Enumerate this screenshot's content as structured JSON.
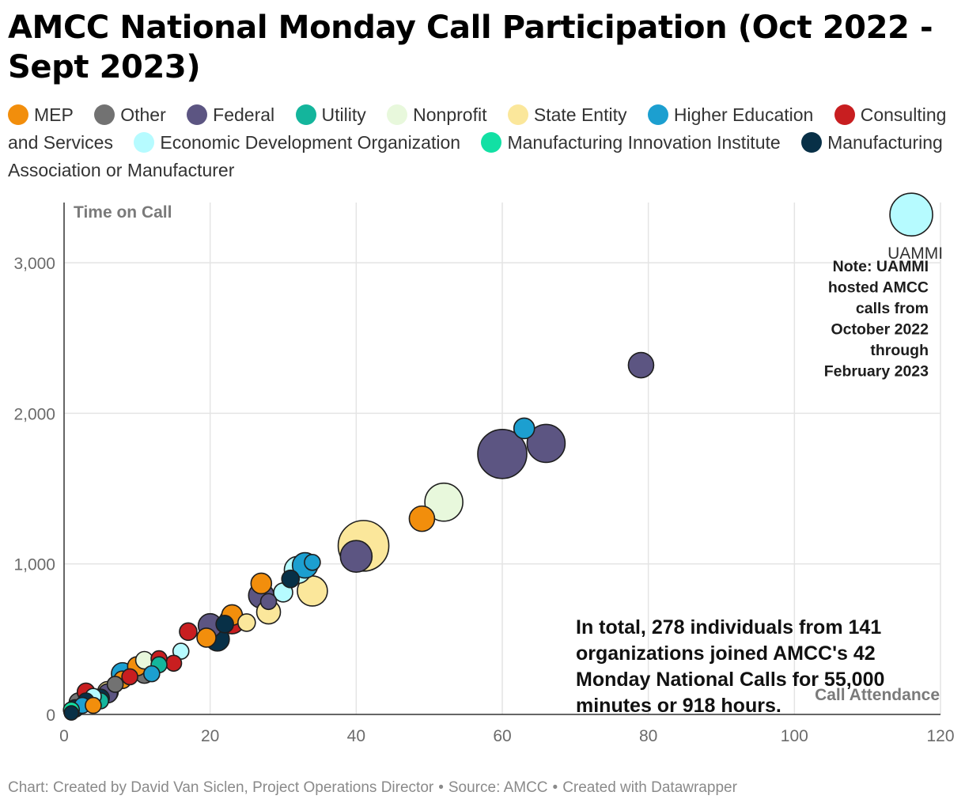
{
  "title": "AMCC National Monday Call Participation (Oct 2022 - Sept 2023)",
  "legend": [
    {
      "label": "MEP",
      "color": "#f28e0c"
    },
    {
      "label": "Other",
      "color": "#727272"
    },
    {
      "label": "Federal",
      "color": "#5c5582"
    },
    {
      "label": "Utility",
      "color": "#14b59c"
    },
    {
      "label": "Nonprofit",
      "color": "#e8f8dc"
    },
    {
      "label": "State Entity",
      "color": "#fbe79b"
    },
    {
      "label": "Higher Education",
      "color": "#1c9fd0"
    },
    {
      "label": "Consulting and Services",
      "color": "#c81e20"
    },
    {
      "label": "Economic Development Organization",
      "color": "#b6fbff"
    },
    {
      "label": "Manufacturing Innovation Institute",
      "color": "#12e0a4"
    },
    {
      "label": "Manufacturing Association or Manufacturer",
      "color": "#083047"
    }
  ],
  "footer": {
    "credit": "Chart: Created by David Van Siclen, Project Operations Director",
    "separator": "•",
    "source": "Source: AMCC",
    "tool": "Created with Datawrapper"
  },
  "chart_data": {
    "type": "scatter",
    "xlabel": "Call Attendance",
    "ylabel": "Time on Call",
    "xlim": [
      0,
      120
    ],
    "ylim": [
      0,
      3400
    ],
    "xticks": [
      0,
      20,
      40,
      60,
      80,
      100,
      120
    ],
    "yticks": [
      0,
      1000,
      2000,
      3000
    ],
    "ytick_labels": [
      "0",
      "1,000",
      "2,000",
      "3,000"
    ],
    "grid": true,
    "points": [
      {
        "x": 116,
        "y": 3320,
        "r": 27,
        "cat": 8,
        "label": "UAMMI"
      },
      {
        "x": 79,
        "y": 2320,
        "r": 16,
        "cat": 2
      },
      {
        "x": 60,
        "y": 1730,
        "r": 31,
        "cat": 2
      },
      {
        "x": 66,
        "y": 1800,
        "r": 24,
        "cat": 2
      },
      {
        "x": 63,
        "y": 1900,
        "r": 13,
        "cat": 6
      },
      {
        "x": 52,
        "y": 1410,
        "r": 24,
        "cat": 4
      },
      {
        "x": 49,
        "y": 1300,
        "r": 16,
        "cat": 0
      },
      {
        "x": 41,
        "y": 1120,
        "r": 32,
        "cat": 5
      },
      {
        "x": 40,
        "y": 1050,
        "r": 20,
        "cat": 2
      },
      {
        "x": 34,
        "y": 820,
        "r": 19,
        "cat": 5
      },
      {
        "x": 34,
        "y": 1010,
        "r": 10,
        "cat": 6
      },
      {
        "x": 33,
        "y": 990,
        "r": 16,
        "cat": 6
      },
      {
        "x": 32,
        "y": 960,
        "r": 17,
        "cat": 8
      },
      {
        "x": 31,
        "y": 900,
        "r": 11,
        "cat": 10
      },
      {
        "x": 30,
        "y": 810,
        "r": 12,
        "cat": 8
      },
      {
        "x": 28,
        "y": 680,
        "r": 15,
        "cat": 5
      },
      {
        "x": 28,
        "y": 750,
        "r": 10,
        "cat": 2
      },
      {
        "x": 27,
        "y": 870,
        "r": 13,
        "cat": 0
      },
      {
        "x": 27,
        "y": 790,
        "r": 16,
        "cat": 2
      },
      {
        "x": 25,
        "y": 610,
        "r": 11,
        "cat": 5
      },
      {
        "x": 23,
        "y": 620,
        "r": 16,
        "cat": 7
      },
      {
        "x": 23,
        "y": 660,
        "r": 13,
        "cat": 0
      },
      {
        "x": 22,
        "y": 600,
        "r": 11,
        "cat": 10
      },
      {
        "x": 21,
        "y": 500,
        "r": 15,
        "cat": 10
      },
      {
        "x": 20,
        "y": 590,
        "r": 15,
        "cat": 2
      },
      {
        "x": 19.5,
        "y": 510,
        "r": 12,
        "cat": 0
      },
      {
        "x": 17,
        "y": 550,
        "r": 11,
        "cat": 7
      },
      {
        "x": 16,
        "y": 420,
        "r": 10,
        "cat": 8
      },
      {
        "x": 15,
        "y": 340,
        "r": 10,
        "cat": 7
      },
      {
        "x": 13,
        "y": 370,
        "r": 10,
        "cat": 7
      },
      {
        "x": 13,
        "y": 330,
        "r": 10,
        "cat": 3
      },
      {
        "x": 12,
        "y": 270,
        "r": 10,
        "cat": 6
      },
      {
        "x": 11,
        "y": 360,
        "r": 11,
        "cat": 4
      },
      {
        "x": 11,
        "y": 270,
        "r": 12,
        "cat": 1
      },
      {
        "x": 10,
        "y": 320,
        "r": 12,
        "cat": 0
      },
      {
        "x": 9,
        "y": 250,
        "r": 10,
        "cat": 7
      },
      {
        "x": 8,
        "y": 270,
        "r": 14,
        "cat": 6
      },
      {
        "x": 8,
        "y": 230,
        "r": 11,
        "cat": 0
      },
      {
        "x": 7,
        "y": 200,
        "r": 10,
        "cat": 1
      },
      {
        "x": 6,
        "y": 150,
        "r": 13,
        "cat": 5
      },
      {
        "x": 6,
        "y": 140,
        "r": 12,
        "cat": 2
      },
      {
        "x": 5,
        "y": 110,
        "r": 11,
        "cat": 10
      },
      {
        "x": 5,
        "y": 90,
        "r": 10,
        "cat": 3
      },
      {
        "x": 4,
        "y": 120,
        "r": 10,
        "cat": 8
      },
      {
        "x": 3,
        "y": 150,
        "r": 11,
        "cat": 7
      },
      {
        "x": 3,
        "y": 90,
        "r": 10,
        "cat": 10
      },
      {
        "x": 2.5,
        "y": 60,
        "r": 10,
        "cat": 6
      },
      {
        "x": 2,
        "y": 80,
        "r": 12,
        "cat": 1
      },
      {
        "x": 1.5,
        "y": 40,
        "r": 11,
        "cat": 10
      },
      {
        "x": 1,
        "y": 30,
        "r": 10,
        "cat": 9
      },
      {
        "x": 1,
        "y": 10,
        "r": 9,
        "cat": 10
      },
      {
        "x": 4,
        "y": 60,
        "r": 10,
        "cat": 0
      }
    ],
    "annotations": {
      "note": [
        "Note: UAMMI",
        "hosted AMCC",
        "calls from",
        "October 2022",
        "through",
        "February 2023"
      ],
      "total": [
        "In total, 278 individuals from 141",
        "organizations joined AMCC's 42",
        "Monday National Calls for 55,000",
        "minutes or 918 hours."
      ]
    }
  }
}
